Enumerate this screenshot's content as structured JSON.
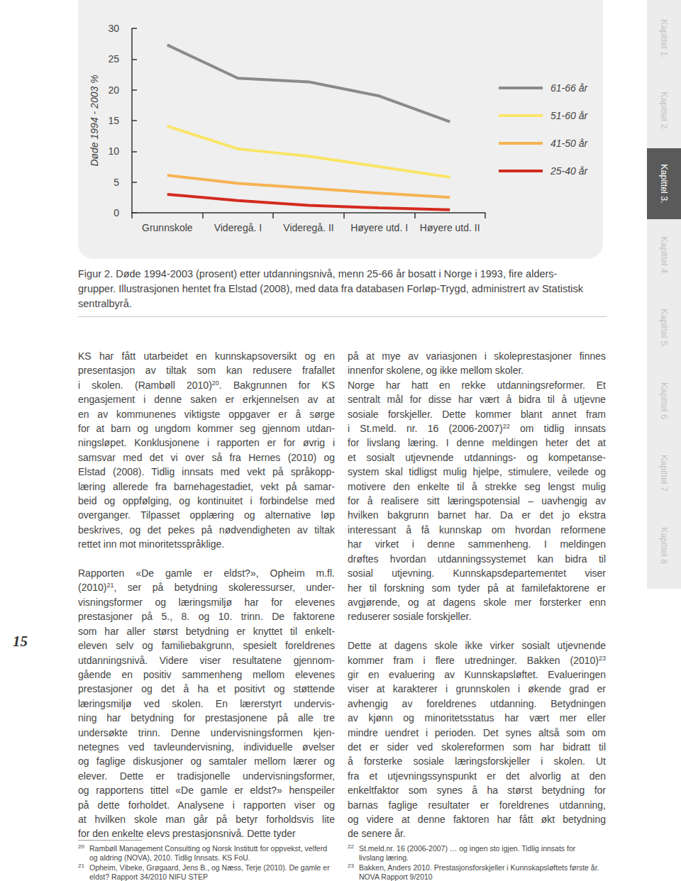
{
  "chart_data": {
    "type": "line",
    "y_label": "Døde 1994 - 2003 %",
    "categories": [
      "Grunnskole",
      "Videregå. I",
      "Videregå. II",
      "Høyere utd. I",
      "Høyere utd. II"
    ],
    "series": [
      {
        "name": "61-66 år",
        "color": "#8a8a8a",
        "values": [
          27.3,
          21.9,
          21.3,
          19.0,
          14.8
        ]
      },
      {
        "name": "51-60 år",
        "color": "#fae467",
        "values": [
          14.1,
          10.4,
          9.2,
          7.5,
          5.8
        ]
      },
      {
        "name": "41-50 år",
        "color": "#f6b352",
        "values": [
          6.1,
          4.8,
          4.0,
          3.2,
          2.5
        ]
      },
      {
        "name": "25-40 år",
        "color": "#d42a1f",
        "values": [
          3.0,
          2.0,
          1.2,
          0.8,
          0.5
        ]
      }
    ],
    "ylim": [
      0,
      30
    ],
    "yticks": [
      0,
      5,
      10,
      15,
      20,
      25,
      30
    ],
    "grid": false,
    "legend": "right"
  },
  "caption": [
    "Figur 2. Døde 1994-2003 (prosent) etter utdanningsnivå, menn 25-66 år bosatt i Norge i 1993, fire alders-",
    "grupper. Illustrasjonen hentet fra Elstad (2008), med data fra databasen Forløp-Trygd, administrert av Statistisk",
    "sentralbyrå."
  ],
  "left_column": [
    [
      [
        "KS har fått utarbeidet en kunnskapsoversikt og en",
        "presentasjon av tiltak som kan redusere frafallet",
        [
          "i skolen. (Rambøll 2010)",
          {
            "sup": "20"
          },
          ". Bakgrunnen for KS"
        ],
        "engasjement i denne saken er erkjennelsen av at",
        "en av kommunenes viktigste oppgaver er å sørge",
        "for at barn og ungdom kommer seg gjennom utdan-",
        "ningsløpet. Konklusjonene i rapporten er for øvrig i",
        "samsvar med det vi over så fra Hernes (2010) og",
        "Elstad (2008). Tidlig innsats med vekt på språkopp-",
        "læring allerede fra barnehagestadiet, vekt på samar-",
        "beid og oppfølging, og kontinuitet i forbindelse med",
        "overganger. Tilpasset opplæring og alternative løp",
        "beskrives, og det pekes på nødvendigheten av tiltak",
        "rettet inn mot minoritetsspråklige."
      ]
    ],
    [
      [
        "Rapporten «De gamle er eldst?», Opheim m.fl.",
        [
          "(2010)",
          {
            "sup": "21"
          },
          ", ser på betydning skoleressurser, under-"
        ],
        "visningsformer og læringsmiljø har for elevenes",
        "prestasjoner på 5., 8. og 10. trinn. De faktorene",
        "som har aller størst betydning er knyttet til enkelt-",
        "eleven selv og familiebakgrunn, spesielt foreldrenes",
        "utdanningsnivå. Videre viser resultatene gjennom-",
        "gående en positiv sammenheng mellom elevenes",
        "prestasjoner og det å ha et positivt og støttende",
        "læringsmiljø ved skolen. En lærerstyrt undervis-",
        "ning har betydning for prestasjonene på alle tre",
        "undersøkte trinn. Denne undervisningsformen kjen-",
        "netegnes ved tavleundervisning, individuelle øvelser",
        "og faglige diskusjoner og samtaler mellom lærer og",
        "elever. Dette er tradisjonelle undervisningsformer,",
        "og rapportens tittel «De gamle er eldst?» henspeiler",
        "på dette forholdet. Analysene i rapporten viser og",
        "at hvilken skole man går på betyr forholdsvis lite",
        "for den enkelte elevs prestasjonsnivå. Dette tyder"
      ]
    ]
  ],
  "right_column": [
    [
      [
        "på at mye av variasjonen i skoleprestasjoner finnes",
        "innenfor skolene, og ikke mellom skoler."
      ],
      [
        "Norge har hatt en rekke utdanningsreformer. Et",
        "sentralt mål for disse har vært å bidra til å utjevne",
        "sosiale forskjeller. Dette kommer blant annet fram",
        [
          "i St.meld. nr. 16 (2006-2007)",
          {
            "sup": "22"
          },
          " om tidlig innsats"
        ],
        "for livslang læring. I denne meldingen heter det at",
        "et sosialt utjevnende utdannings- og kompetanse-",
        "system skal tidligst mulig hjelpe, stimulere, veilede og",
        "motivere den enkelte til å strekke seg lengst mulig",
        "for å realisere sitt læringspotensial – uavhengig av",
        "hvilken bakgrunn barnet har. Da er det jo ekstra",
        "interessant å få kunnskap om hvordan reformene",
        "har virket i denne sammenheng. I meldingen",
        "drøftes hvordan utdanningssystemet kan bidra til",
        "sosial utjevning. Kunnskapsdepartementet viser",
        "her til forskning som tyder på at familefaktorene er",
        "avgjørende, og at dagens skole mer forsterker enn",
        "reduserer sosiale forskjeller."
      ]
    ],
    [
      [
        "Dette at dagens skole ikke virker sosialt utjevnende",
        [
          "kommer fram i flere utredninger. Bakken (2010)",
          {
            "sup": "23"
          }
        ],
        "gir en evaluering av Kunnskapsløftet. Evalueringen",
        "viser at karakterer i grunnskolen i økende grad er",
        "avhengig av foreldrenes utdanning. Betydningen",
        "av kjønn og minoritetsstatus har vært mer eller",
        "mindre uendret i perioden. Det synes altså som om",
        "det er sider ved skolereformen som har bidratt til",
        "å forsterke sosiale læringsforskjeller i skolen. Ut",
        "fra et utjevningssynspunkt er det alvorlig at den",
        "enkeltfaktor som synes å ha størst betydning for",
        "barnas faglige resultater er foreldrenes utdanning,",
        "og videre at denne faktoren har fått økt betydning",
        "de senere år."
      ]
    ]
  ],
  "footnotes_left": [
    {
      "mark": "20",
      "lines": [
        "Rambøll Management Consulting og Norsk Institutt for oppvekst, velferd",
        "og aldring (NOVA), 2010. Tidlig Innsats. KS FoU."
      ]
    },
    {
      "mark": "21",
      "lines": [
        "Opheim, Vibeke, Grøgaard, Jens B., og Næss, Terje (2010). De gamle er",
        "eldst? Rapport 34/2010 NIFU STEP"
      ]
    }
  ],
  "footnotes_right": [
    {
      "mark": "22",
      "lines": [
        "St.meld.nr. 16 (2006-2007) … og ingen sto igjen. Tidlig innsats for",
        "livslang læring."
      ]
    },
    {
      "mark": "23",
      "lines": [
        "Bakken, Anders 2010. Prestasjonsforskjeller i Kunnskapsløftets første år.",
        "NOVA Rapport 9/2010"
      ]
    }
  ],
  "page_number": "15",
  "side_tabs": [
    "Kapittel 1.",
    "Kapittel 2.",
    "Kapittel 3.",
    "Kapittel 4.",
    "Kapittel 5.",
    "Kapittel 6",
    "Kapittel 7",
    "Kapittel 8"
  ],
  "active_tab": "Kapittel 3."
}
